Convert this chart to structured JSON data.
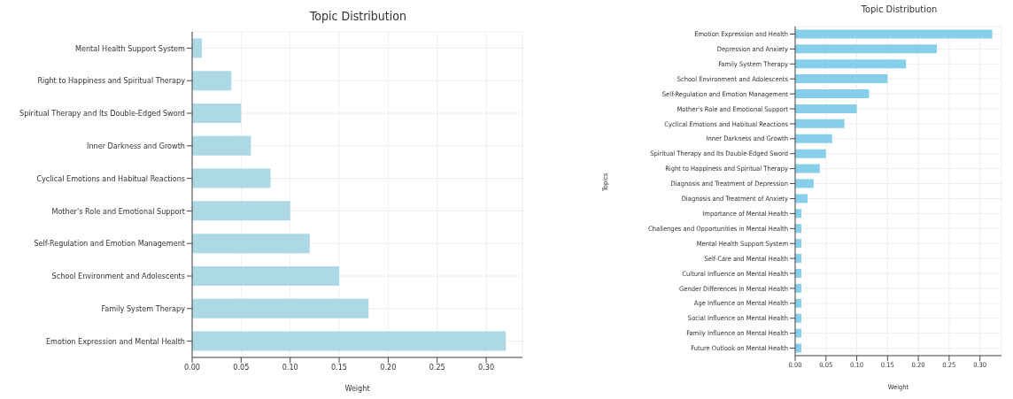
{
  "chart_data": [
    {
      "type": "bar",
      "orientation": "horizontal",
      "title": "Topic Distribution",
      "xlabel": "Weight",
      "categories": [
        "Mental Health Support System",
        "Right to Happiness and Spiritual Therapy",
        "Spiritual Therapy and Its Double-Edged Sword",
        "Inner Darkness and Growth",
        "Cyclical Emotions and Habitual Reactions",
        "Mother's Role and Emotional Support",
        "Self-Regulation and Emotion Management",
        "School Environment and Adolescents",
        "Family System Therapy",
        "Emotion Expression and Mental Health"
      ],
      "values": [
        0.01,
        0.04,
        0.05,
        0.06,
        0.08,
        0.1,
        0.12,
        0.15,
        0.18,
        0.32
      ],
      "color": "#add8e6",
      "xlim": [
        0,
        0.337
      ],
      "xticks": [
        {
          "value": 0,
          "label": "0.00"
        },
        {
          "value": 0.05,
          "label": "0.05"
        },
        {
          "value": 0.1,
          "label": "0.10"
        },
        {
          "value": 0.15,
          "label": "0.15"
        },
        {
          "value": 0.2,
          "label": "0.20"
        },
        {
          "value": 0.25,
          "label": "0.25"
        },
        {
          "value": 0.3,
          "label": "0.30"
        }
      ],
      "grid": true
    },
    {
      "type": "bar",
      "orientation": "horizontal",
      "title": "Topic Distribution",
      "xlabel": "Weight",
      "ylabel": "Topics",
      "categories": [
        "Emotion Expression and Health",
        "Depression and Anxiety",
        "Family System Therapy",
        "School Environment and Adolescents",
        "Self-Regulation and Emotion Management",
        "Mother's Role and Emotional Support",
        "Cyclical Emotions and Habitual Reactions",
        "Inner Darkness and Growth",
        "Spiritual Therapy and Its Double-Edged Sword",
        "Right to Happiness and Spiritual Therapy",
        "Diagnosis and Treatment of Depression",
        "Diagnosis and Treatment of Anxiety",
        "Importance of Mental Health",
        "Challenges and Opportunities in Mental Health",
        "Mental Health Support System",
        "Self-Care and Mental Health",
        "Cultural Influence on Mental Health",
        "Gender Differences in Mental Health",
        "Age Influence on Mental Health",
        "Social Influence on Mental Health",
        "Family Influence on Mental Health",
        "Future Outlook on Mental Health"
      ],
      "values": [
        0.32,
        0.23,
        0.18,
        0.15,
        0.12,
        0.1,
        0.08,
        0.06,
        0.05,
        0.04,
        0.03,
        0.02,
        0.01,
        0.01,
        0.01,
        0.01,
        0.01,
        0.01,
        0.01,
        0.01,
        0.01,
        0.01
      ],
      "color": "#87ceeb",
      "xlim": [
        0,
        0.335
      ],
      "xticks": [
        {
          "value": 0,
          "label": "0.00"
        },
        {
          "value": 0.05,
          "label": "0.05"
        },
        {
          "value": 0.1,
          "label": "0.10"
        },
        {
          "value": 0.15,
          "label": "0.15"
        },
        {
          "value": 0.2,
          "label": "0.20"
        },
        {
          "value": 0.25,
          "label": "0.25"
        },
        {
          "value": 0.3,
          "label": "0.30"
        }
      ],
      "grid": true
    }
  ]
}
